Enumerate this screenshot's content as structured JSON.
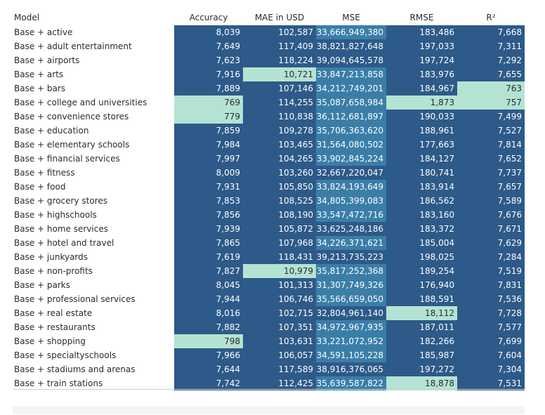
{
  "colors": {
    "dark": "#2d5a88",
    "medium": "#3a7ea8",
    "light": "#b4e3d3"
  },
  "chart_data": {
    "type": "table",
    "columns": [
      "Model",
      "Accuracy",
      "MAE in USD",
      "MSE",
      "RMSE",
      "R²"
    ],
    "rows": [
      {
        "model": "Base + active",
        "accuracy": "8,039",
        "mae": "102,587",
        "mse": "33,666,949,380",
        "rmse": "183,486",
        "r2": "7,668",
        "shade": {
          "accuracy": "dark",
          "mae": "dark",
          "mse": "medium",
          "rmse": "dark",
          "r2": "dark"
        }
      },
      {
        "model": "Base + adult entertainment",
        "accuracy": "7,649",
        "mae": "117,409",
        "mse": "38,821,827,648",
        "rmse": "197,033",
        "r2": "7,311",
        "shade": {
          "accuracy": "dark",
          "mae": "dark",
          "mse": "dark",
          "rmse": "dark",
          "r2": "dark"
        }
      },
      {
        "model": "Base + airports",
        "accuracy": "7,623",
        "mae": "118,224",
        "mse": "39,094,645,578",
        "rmse": "197,724",
        "r2": "7,292",
        "shade": {
          "accuracy": "dark",
          "mae": "dark",
          "mse": "dark",
          "rmse": "dark",
          "r2": "dark"
        }
      },
      {
        "model": "Base + arts",
        "accuracy": "7,916",
        "mae": "10,721",
        "mse": "33,847,213,858",
        "rmse": "183,976",
        "r2": "7,655",
        "shade": {
          "accuracy": "dark",
          "mae": "light",
          "mse": "medium",
          "rmse": "dark",
          "r2": "dark"
        }
      },
      {
        "model": "Base + bars",
        "accuracy": "7,889",
        "mae": "107,146",
        "mse": "34,212,749,201",
        "rmse": "184,967",
        "r2": "763",
        "shade": {
          "accuracy": "dark",
          "mae": "dark",
          "mse": "medium",
          "rmse": "dark",
          "r2": "light"
        }
      },
      {
        "model": "Base + college and universities",
        "accuracy": "769",
        "mae": "114,255",
        "mse": "35,087,658,984",
        "rmse": "1,873",
        "r2": "757",
        "shade": {
          "accuracy": "light",
          "mae": "dark",
          "mse": "medium",
          "rmse": "light",
          "r2": "light"
        }
      },
      {
        "model": "Base + convenience stores",
        "accuracy": "779",
        "mae": "110,838",
        "mse": "36,112,681,897",
        "rmse": "190,033",
        "r2": "7,499",
        "shade": {
          "accuracy": "light",
          "mae": "dark",
          "mse": "medium",
          "rmse": "dark",
          "r2": "dark"
        }
      },
      {
        "model": "Base + education",
        "accuracy": "7,859",
        "mae": "109,278",
        "mse": "35,706,363,620",
        "rmse": "188,961",
        "r2": "7,527",
        "shade": {
          "accuracy": "dark",
          "mae": "dark",
          "mse": "medium",
          "rmse": "dark",
          "r2": "dark"
        }
      },
      {
        "model": "Base + elementary schools",
        "accuracy": "7,984",
        "mae": "103,465",
        "mse": "31,564,080,502",
        "rmse": "177,663",
        "r2": "7,814",
        "shade": {
          "accuracy": "dark",
          "mae": "dark",
          "mse": "medium",
          "rmse": "dark",
          "r2": "dark"
        }
      },
      {
        "model": "Base + financial services",
        "accuracy": "7,997",
        "mae": "104,265",
        "mse": "33,902,845,224",
        "rmse": "184,127",
        "r2": "7,652",
        "shade": {
          "accuracy": "dark",
          "mae": "dark",
          "mse": "medium",
          "rmse": "dark",
          "r2": "dark"
        }
      },
      {
        "model": "Base + fitness",
        "accuracy": "8,009",
        "mae": "103,260",
        "mse": "32,667,220,047",
        "rmse": "180,741",
        "r2": "7,737",
        "shade": {
          "accuracy": "dark",
          "mae": "dark",
          "mse": "dark",
          "rmse": "dark",
          "r2": "dark"
        }
      },
      {
        "model": "Base + food",
        "accuracy": "7,931",
        "mae": "105,850",
        "mse": "33,824,193,649",
        "rmse": "183,914",
        "r2": "7,657",
        "shade": {
          "accuracy": "dark",
          "mae": "dark",
          "mse": "medium",
          "rmse": "dark",
          "r2": "dark"
        }
      },
      {
        "model": "Base + grocery stores",
        "accuracy": "7,853",
        "mae": "108,525",
        "mse": "34,805,399,083",
        "rmse": "186,562",
        "r2": "7,589",
        "shade": {
          "accuracy": "dark",
          "mae": "dark",
          "mse": "medium",
          "rmse": "dark",
          "r2": "dark"
        }
      },
      {
        "model": "Base + highschools",
        "accuracy": "7,856",
        "mae": "108,190",
        "mse": "33,547,472,716",
        "rmse": "183,160",
        "r2": "7,676",
        "shade": {
          "accuracy": "dark",
          "mae": "dark",
          "mse": "medium",
          "rmse": "dark",
          "r2": "dark"
        }
      },
      {
        "model": "Base + home services",
        "accuracy": "7,939",
        "mae": "105,872",
        "mse": "33,625,248,186",
        "rmse": "183,372",
        "r2": "7,671",
        "shade": {
          "accuracy": "dark",
          "mae": "dark",
          "mse": "dark",
          "rmse": "dark",
          "r2": "dark"
        }
      },
      {
        "model": "Base + hotel and travel",
        "accuracy": "7,865",
        "mae": "107,968",
        "mse": "34,226,371,621",
        "rmse": "185,004",
        "r2": "7,629",
        "shade": {
          "accuracy": "dark",
          "mae": "dark",
          "mse": "medium",
          "rmse": "dark",
          "r2": "dark"
        }
      },
      {
        "model": "Base + junkyards",
        "accuracy": "7,619",
        "mae": "118,431",
        "mse": "39,213,735,223",
        "rmse": "198,025",
        "r2": "7,284",
        "shade": {
          "accuracy": "dark",
          "mae": "dark",
          "mse": "dark",
          "rmse": "dark",
          "r2": "dark"
        }
      },
      {
        "model": "Base + non-profits",
        "accuracy": "7,827",
        "mae": "10,979",
        "mse": "35,817,252,368",
        "rmse": "189,254",
        "r2": "7,519",
        "shade": {
          "accuracy": "dark",
          "mae": "light",
          "mse": "medium",
          "rmse": "dark",
          "r2": "dark"
        }
      },
      {
        "model": "Base + parks",
        "accuracy": "8,045",
        "mae": "101,313",
        "mse": "31,307,749,326",
        "rmse": "176,940",
        "r2": "7,831",
        "shade": {
          "accuracy": "dark",
          "mae": "dark",
          "mse": "medium",
          "rmse": "dark",
          "r2": "dark"
        }
      },
      {
        "model": "Base + professional services",
        "accuracy": "7,944",
        "mae": "106,746",
        "mse": "35,566,659,050",
        "rmse": "188,591",
        "r2": "7,536",
        "shade": {
          "accuracy": "dark",
          "mae": "dark",
          "mse": "medium",
          "rmse": "dark",
          "r2": "dark"
        }
      },
      {
        "model": "Base + real estate",
        "accuracy": "8,016",
        "mae": "102,715",
        "mse": "32,804,961,140",
        "rmse": "18,112",
        "r2": "7,728",
        "shade": {
          "accuracy": "dark",
          "mae": "dark",
          "mse": "dark",
          "rmse": "light",
          "r2": "dark"
        }
      },
      {
        "model": "Base + restaurants",
        "accuracy": "7,882",
        "mae": "107,351",
        "mse": "34,972,967,935",
        "rmse": "187,011",
        "r2": "7,577",
        "shade": {
          "accuracy": "dark",
          "mae": "dark",
          "mse": "medium",
          "rmse": "dark",
          "r2": "dark"
        }
      },
      {
        "model": "Base + shopping",
        "accuracy": "798",
        "mae": "103,631",
        "mse": "33,221,072,952",
        "rmse": "182,266",
        "r2": "7,699",
        "shade": {
          "accuracy": "light",
          "mae": "dark",
          "mse": "medium",
          "rmse": "dark",
          "r2": "dark"
        }
      },
      {
        "model": "Base + specialtyschools",
        "accuracy": "7,966",
        "mae": "106,057",
        "mse": "34,591,105,228",
        "rmse": "185,987",
        "r2": "7,604",
        "shade": {
          "accuracy": "dark",
          "mae": "dark",
          "mse": "medium",
          "rmse": "dark",
          "r2": "dark"
        }
      },
      {
        "model": "Base + stadiums and arenas",
        "accuracy": "7,644",
        "mae": "117,589",
        "mse": "38,916,376,065",
        "rmse": "197,272",
        "r2": "7,304",
        "shade": {
          "accuracy": "dark",
          "mae": "dark",
          "mse": "dark",
          "rmse": "dark",
          "r2": "dark"
        }
      },
      {
        "model": "Base + train stations",
        "accuracy": "7,742",
        "mae": "112,425",
        "mse": "35,639,587,822",
        "rmse": "18,878",
        "r2": "7,531",
        "shade": {
          "accuracy": "dark",
          "mae": "dark",
          "mse": "medium",
          "rmse": "light",
          "r2": "dark"
        }
      }
    ]
  }
}
